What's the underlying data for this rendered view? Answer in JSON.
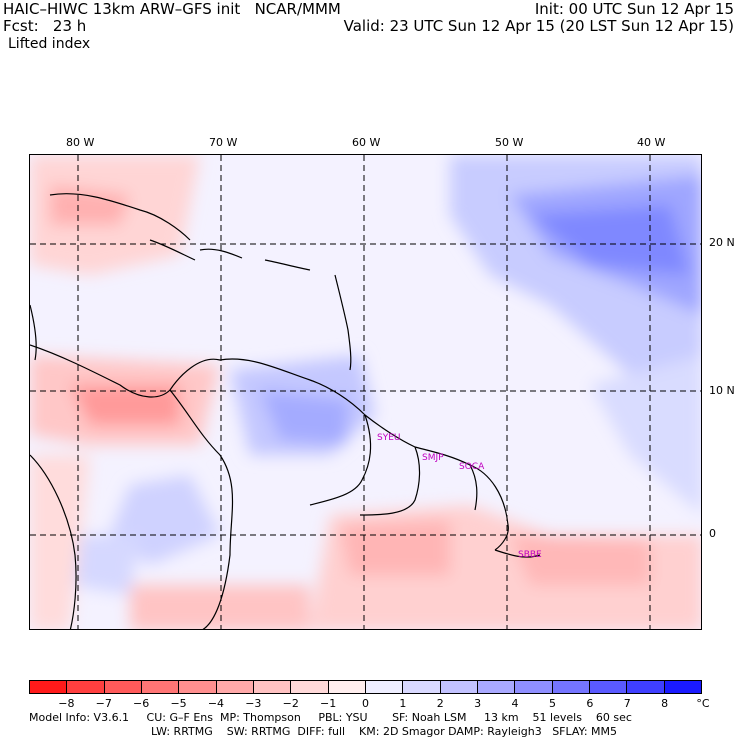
{
  "header": {
    "left_line1": "HAIC–HIWC 13km ARW–GFS init   NCAR/MMM",
    "left_line2": "Fcst:   23 h",
    "right_line1": "Init: 00 UTC Sun 12 Apr 15",
    "right_line2": "Valid: 23 UTC Sun 12 Apr 15 (20 LST Sun 12 Apr 15)",
    "field_name": "Lifted index"
  },
  "map": {
    "lon_labels": [
      "80 W",
      "70 W",
      "60 W",
      "50 W",
      "40 W"
    ],
    "lat_labels": [
      "20 N",
      "10 N",
      "0"
    ],
    "station_labels": [
      "SYEU",
      "SMJP",
      "SOCA",
      "SBBE"
    ],
    "colors": {
      "land_border": "#000000",
      "station_label": "#c000c0",
      "gridline": "#000000"
    }
  },
  "colorbar": {
    "colors": [
      "#ff1a1a",
      "#ff3f3f",
      "#ff5a5a",
      "#ff7575",
      "#ff8f8f",
      "#ffa9a9",
      "#ffc2c2",
      "#ffd9d9",
      "#ffeeee",
      "#eeeeff",
      "#d9d9ff",
      "#c2c2ff",
      "#a9a9ff",
      "#8f8fff",
      "#7575ff",
      "#5a5aff",
      "#3f3fff",
      "#1a1aff"
    ],
    "tick_labels": [
      "−8",
      "−7",
      "−6",
      "−5",
      "−4",
      "−3",
      "−2",
      "−1",
      "0",
      "1",
      "2",
      "3",
      "4",
      "5",
      "6",
      "7",
      "8"
    ],
    "unit": "°C"
  },
  "footer": {
    "line1": "Model Info: V3.6.1     CU: G–F Ens  MP: Thompson     PBL: YSU       SF: Noah LSM     13 km    51 levels    60 sec",
    "line2": "LW: RRTMG    SW: RRTMG  DIFF: full    KM: 2D Smagor DAMP: Rayleigh3   SFLAY: MM5"
  }
}
